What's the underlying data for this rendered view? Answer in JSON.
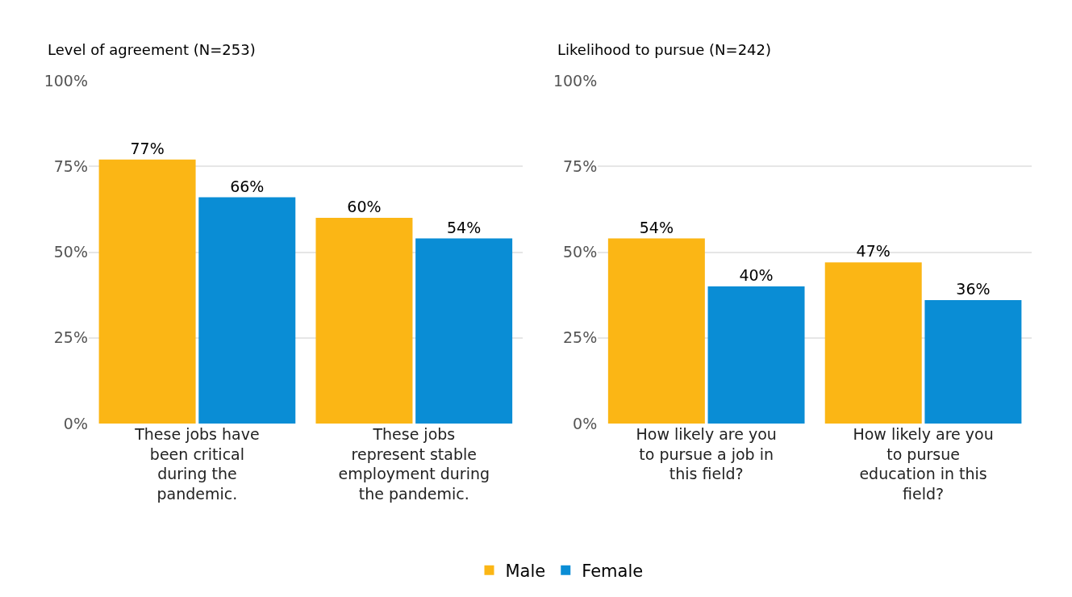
{
  "chart_data": [
    {
      "type": "bar",
      "title": "Level of agreement (N=253)",
      "categories": [
        "These jobs have been critical during the pandemic.",
        "These jobs represent stable employment during the pandemic."
      ],
      "series": [
        {
          "name": "Male",
          "color": "#fbb615",
          "values": [
            77,
            60
          ]
        },
        {
          "name": "Female",
          "color": "#0a8dd5",
          "values": [
            66,
            54
          ]
        }
      ],
      "ylim": [
        0,
        100
      ],
      "yticks": [
        {
          "value": 0,
          "label": "0%"
        },
        {
          "value": 25,
          "label": "25%"
        },
        {
          "value": 50,
          "label": "50%"
        },
        {
          "value": 75,
          "label": "75%"
        },
        {
          "value": 100,
          "label": "100%"
        }
      ],
      "value_labels": [
        [
          "77%",
          "60%"
        ],
        [
          "66%",
          "54%"
        ]
      ],
      "grid": "y",
      "legend": "bottom"
    },
    {
      "type": "bar",
      "title": "Likelihood to pursue (N=242)",
      "categories": [
        "How likely are you to pursue a job in this field?",
        "How likely are you to pursue education in this field?"
      ],
      "series": [
        {
          "name": "Male",
          "color": "#fbb615",
          "values": [
            54,
            47
          ]
        },
        {
          "name": "Female",
          "color": "#0a8dd5",
          "values": [
            40,
            36
          ]
        }
      ],
      "ylim": [
        0,
        100
      ],
      "yticks": [
        {
          "value": 0,
          "label": "0%"
        },
        {
          "value": 25,
          "label": "25%"
        },
        {
          "value": 50,
          "label": "50%"
        },
        {
          "value": 75,
          "label": "75%"
        },
        {
          "value": 100,
          "label": "100%"
        }
      ],
      "value_labels": [
        [
          "54%",
          "47%"
        ],
        [
          "40%",
          "36%"
        ]
      ],
      "grid": "y",
      "legend": "bottom"
    }
  ]
}
